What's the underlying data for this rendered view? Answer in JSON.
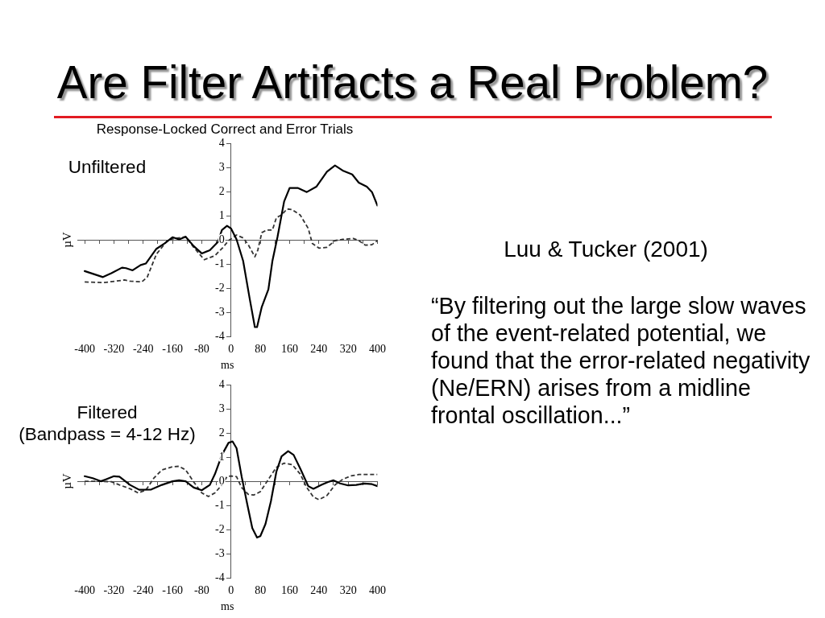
{
  "chart_data": [
    {
      "type": "line",
      "title": "Are Filter Artifacts a Real Problem?",
      "subtitle": "Response-Locked Correct and Error Trials",
      "annotations": [
        "Unfiltered"
      ],
      "xlabel": "ms",
      "ylabel": "µV",
      "xlim": [
        -420,
        400
      ],
      "xticks": [
        -400,
        {
          "value": -360,
          "label": null
        },
        -320,
        {
          "value": -280,
          "label": null
        },
        -240,
        {
          "value": -200,
          "label": null
        },
        -160,
        {
          "value": -120,
          "label": null
        },
        -80,
        {
          "value": -40,
          "label": null
        },
        0,
        {
          "value": 40,
          "label": null
        },
        80,
        {
          "value": 120,
          "label": null
        },
        160,
        {
          "value": 200,
          "label": null
        },
        240,
        {
          "value": 280,
          "label": null
        },
        320,
        {
          "value": 360,
          "label": null
        },
        400
      ],
      "ylim": [
        -4,
        4
      ],
      "yticks": [
        -4,
        -3,
        -2,
        -1,
        0,
        1,
        2,
        3,
        4
      ],
      "marker": "none",
      "series": [
        {
          "color": "#000000",
          "line_style": "solid",
          "x": [
            -400,
            -350,
            -327,
            -298,
            -287,
            -269,
            -247,
            -233,
            -204,
            -182,
            -160,
            -142,
            -124,
            -102,
            -80,
            -58,
            -36,
            -25,
            -11,
            0,
            15,
            33,
            51,
            65,
            71,
            84,
            102,
            113,
            127,
            145,
            160,
            182,
            207,
            233,
            262,
            284,
            305,
            331,
            349,
            371,
            385,
            400
          ],
          "values": [
            -1.29,
            -1.54,
            -1.38,
            -1.15,
            -1.17,
            -1.26,
            -1.04,
            -0.98,
            -0.37,
            -0.15,
            0.11,
            0.02,
            0.13,
            -0.26,
            -0.56,
            -0.43,
            -0.09,
            0.41,
            0.58,
            0.47,
            0.02,
            -0.87,
            -2.44,
            -3.61,
            -3.61,
            -2.77,
            -2.05,
            -0.87,
            0.13,
            1.59,
            2.15,
            2.15,
            1.98,
            2.2,
            2.82,
            3.08,
            2.87,
            2.71,
            2.37,
            2.2,
            1.98,
            1.42
          ]
        },
        {
          "color": "#333333",
          "line_style": "dashed",
          "x": [
            -400,
            -349,
            -291,
            -276,
            -244,
            -229,
            -204,
            -174,
            -160,
            -124,
            -102,
            -73,
            -44,
            -22,
            -7,
            15,
            33,
            47,
            65,
            73,
            84,
            98,
            113,
            124,
            138,
            153,
            167,
            189,
            211,
            222,
            240,
            262,
            284,
            305,
            334,
            349,
            367,
            385,
            400
          ],
          "values": [
            -1.74,
            -1.77,
            -1.66,
            -1.71,
            -1.74,
            -1.54,
            -0.59,
            -0.03,
            0.04,
            0.13,
            -0.31,
            -0.82,
            -0.65,
            -0.31,
            -0.03,
            0.2,
            0.08,
            -0.2,
            -0.7,
            -0.43,
            0.3,
            0.41,
            0.41,
            0.92,
            1.03,
            1.28,
            1.25,
            1.03,
            0.47,
            -0.15,
            -0.34,
            -0.31,
            -0.03,
            0.02,
            0.06,
            -0.03,
            -0.22,
            -0.2,
            -0.03
          ]
        }
      ]
    },
    {
      "type": "line",
      "annotations": [
        "Filtered",
        "(Bandpass = 4-12 Hz)"
      ],
      "xlabel": "ms",
      "ylabel": "µV",
      "xlim": [
        -420,
        400
      ],
      "xticks": [
        -400,
        {
          "value": -360,
          "label": null
        },
        -320,
        {
          "value": -280,
          "label": null
        },
        -240,
        {
          "value": -200,
          "label": null
        },
        -160,
        {
          "value": -120,
          "label": null
        },
        -80,
        {
          "value": -40,
          "label": null
        },
        0,
        {
          "value": 40,
          "label": null
        },
        80,
        {
          "value": 120,
          "label": null
        },
        160,
        {
          "value": 200,
          "label": null
        },
        240,
        {
          "value": 280,
          "label": null
        },
        320,
        {
          "value": 360,
          "label": null
        },
        400
      ],
      "ylim": [
        -4,
        4
      ],
      "yticks": [
        -4,
        -3,
        -2,
        -1,
        0,
        1,
        2,
        3,
        4
      ],
      "marker": "none",
      "series": [
        {
          "color": "#000000",
          "line_style": "solid",
          "x": [
            -400,
            -378,
            -356,
            -342,
            -320,
            -305,
            -276,
            -251,
            -218,
            -189,
            -160,
            -142,
            -124,
            -102,
            -80,
            -58,
            -44,
            -25,
            -7,
            4,
            15,
            29,
            44,
            58,
            71,
            80,
            94,
            109,
            124,
            138,
            156,
            171,
            189,
            211,
            225,
            247,
            265,
            280,
            298,
            320,
            342,
            364,
            385,
            400
          ],
          "values": [
            0.21,
            0.13,
            0,
            0.08,
            0.21,
            0.19,
            -0.15,
            -0.35,
            -0.34,
            -0.15,
            0,
            0.04,
            0,
            -0.26,
            -0.37,
            -0.15,
            0.3,
            1.09,
            1.59,
            1.65,
            1.37,
            0.19,
            -0.93,
            -1.94,
            -2.33,
            -2.27,
            -1.77,
            -0.82,
            0.41,
            1.03,
            1.25,
            1.09,
            0.53,
            -0.2,
            -0.31,
            -0.15,
            -0.03,
            0.04,
            -0.09,
            -0.17,
            -0.15,
            -0.09,
            -0.12,
            -0.2
          ]
        },
        {
          "color": "#333333",
          "line_style": "dashed",
          "x": [
            -400,
            -356,
            -327,
            -305,
            -276,
            -254,
            -233,
            -211,
            -189,
            -160,
            -142,
            -124,
            -102,
            -80,
            -62,
            -44,
            -25,
            -11,
            0,
            15,
            29,
            47,
            62,
            80,
            102,
            124,
            145,
            167,
            189,
            207,
            225,
            240,
            262,
            284,
            305,
            327,
            349,
            371,
            400
          ],
          "values": [
            0,
            0,
            -0.02,
            -0.15,
            -0.31,
            -0.48,
            -0.37,
            0.13,
            0.47,
            0.6,
            0.62,
            0.47,
            -0.03,
            -0.48,
            -0.63,
            -0.48,
            -0.15,
            0.19,
            0.22,
            0.19,
            -0.26,
            -0.54,
            -0.57,
            -0.43,
            0.08,
            0.58,
            0.75,
            0.69,
            0.3,
            -0.26,
            -0.65,
            -0.76,
            -0.59,
            -0.15,
            0.08,
            0.22,
            0.28,
            0.28,
            0.28
          ]
        }
      ]
    },
    {
      "type": "other",
      "title": "Luu & Tucker (2001)",
      "annotations": [
        "“By filtering out the large slow waves of the event-related potential, we found that the error-related negativity (Ne/ERN) arises from a midline frontal oscillation...”"
      ]
    }
  ]
}
